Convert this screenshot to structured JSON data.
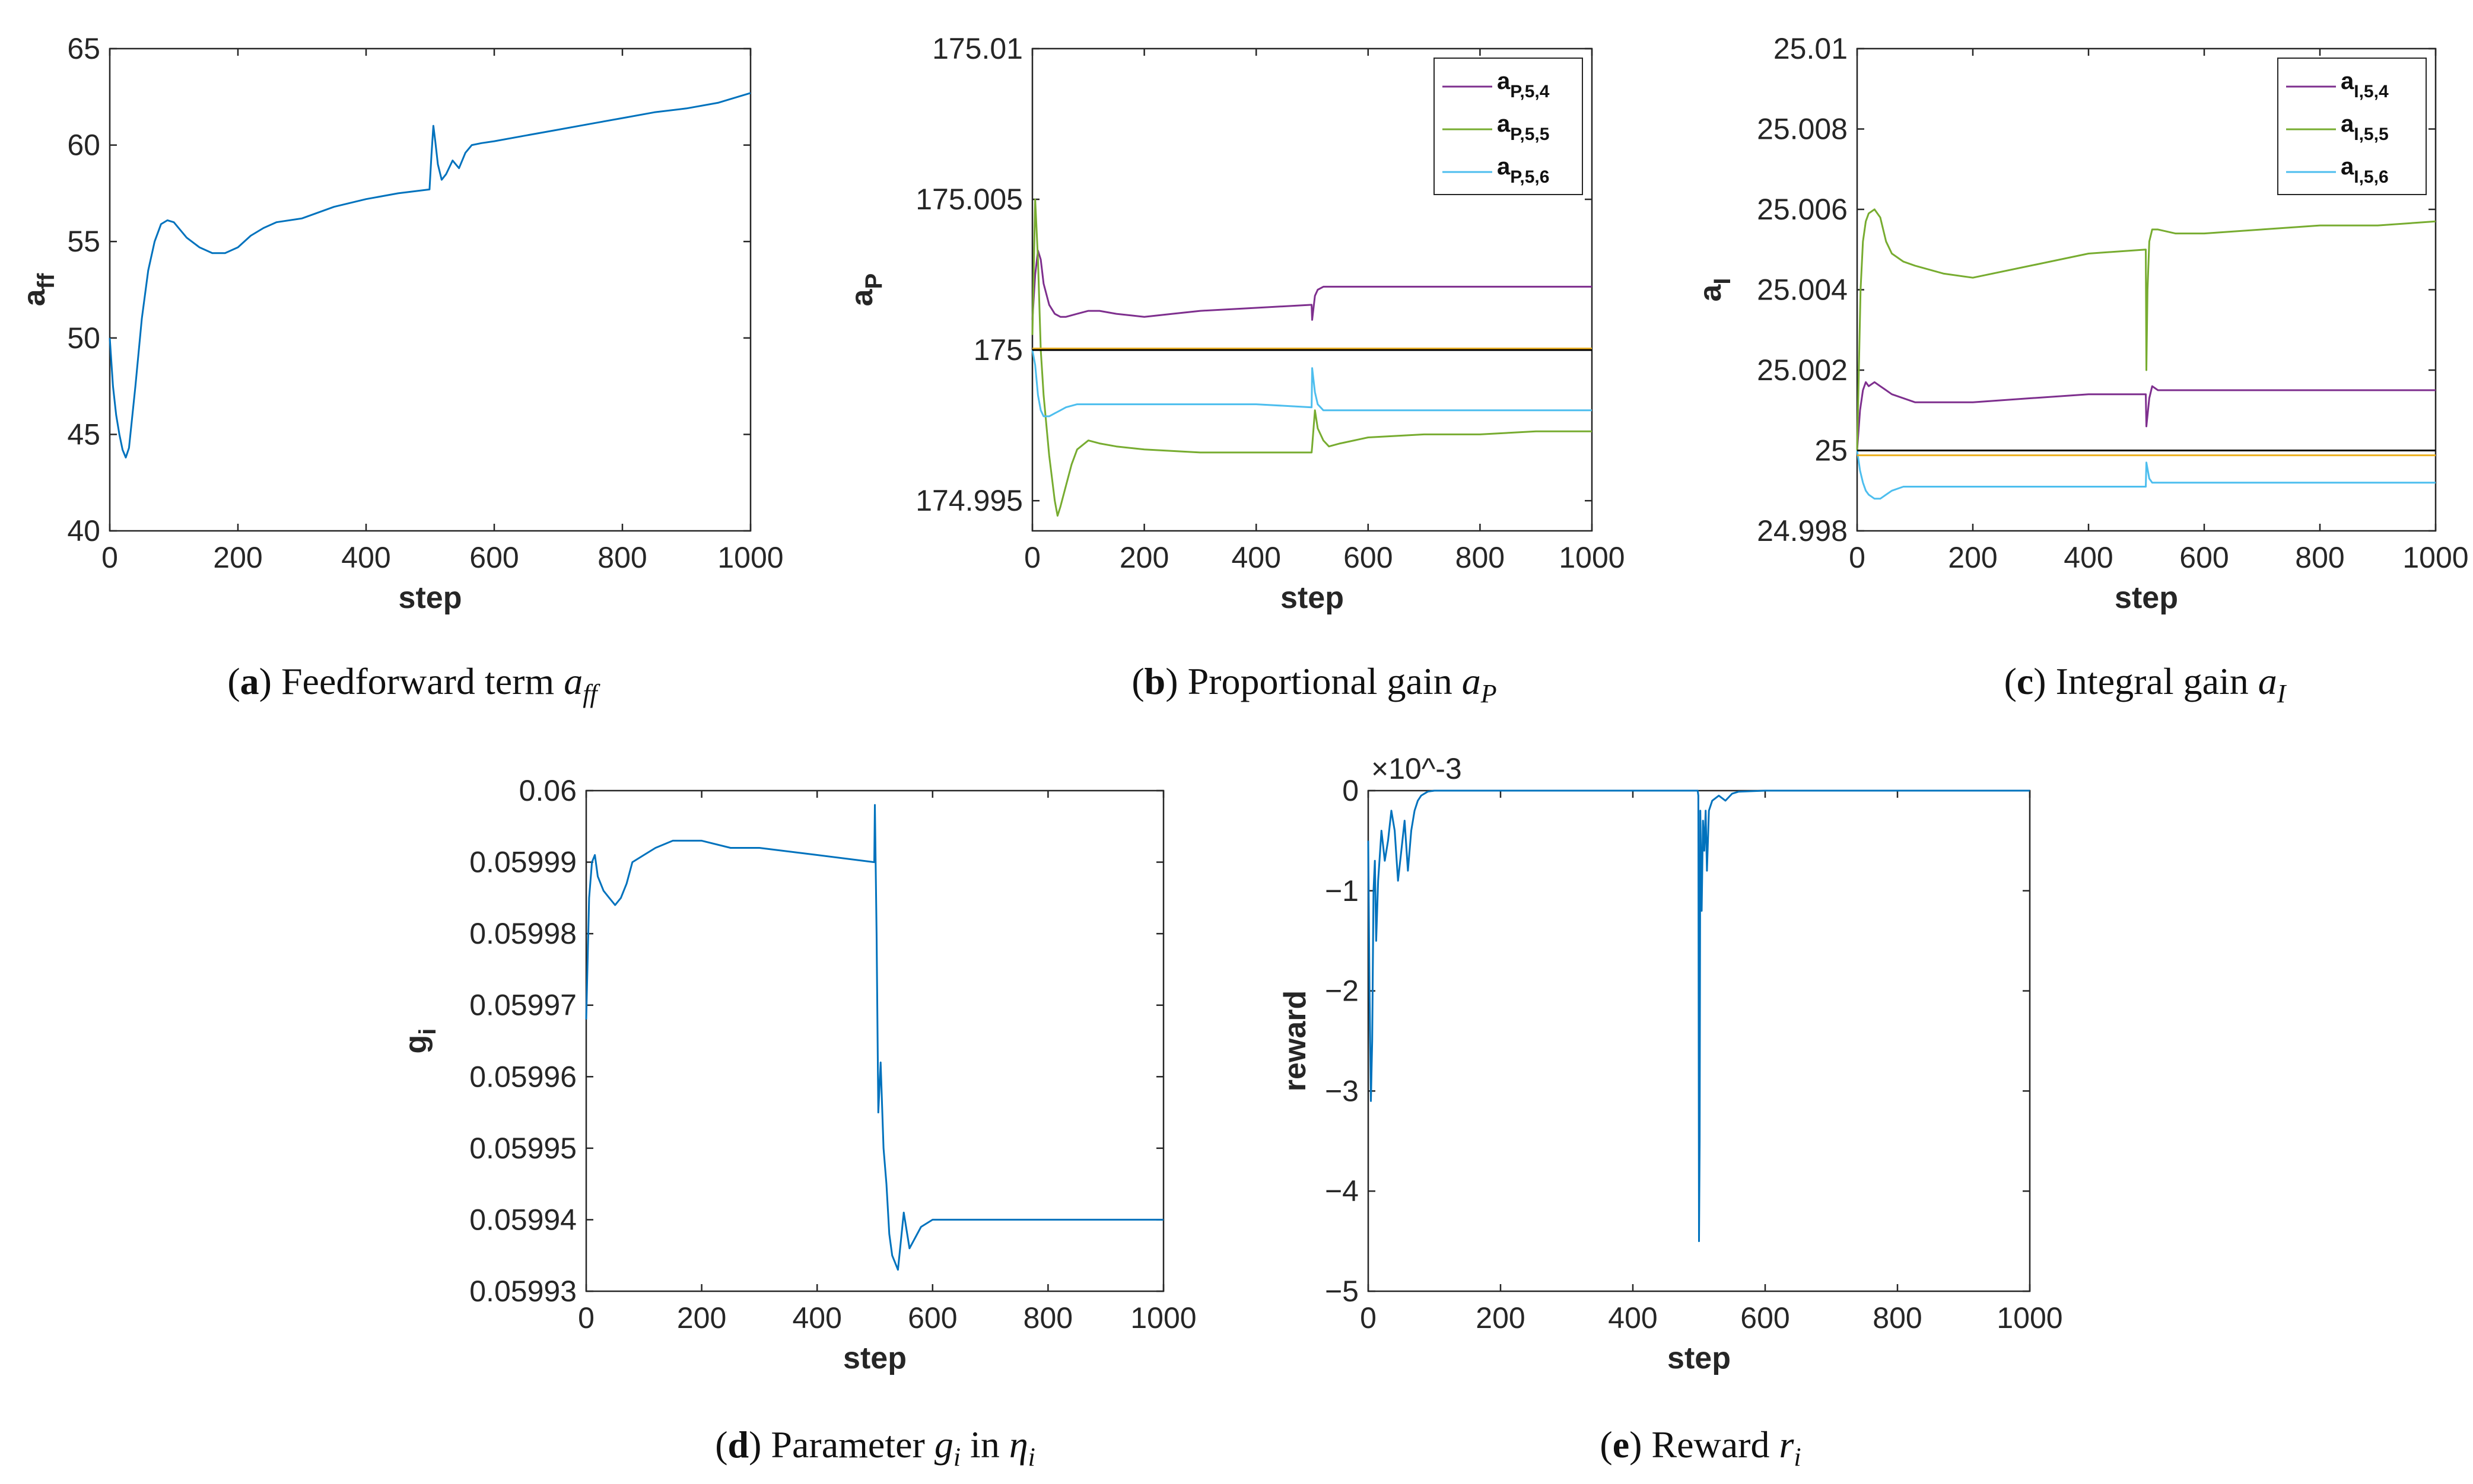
{
  "colors": {
    "blue": "#0072BD",
    "purple": "#7E2F8E",
    "green": "#77AC30",
    "cyan": "#4DBEEE",
    "orange": "#EDB120",
    "black": "#000000"
  },
  "chart_data": [
    {
      "id": "a",
      "type": "line",
      "title": "",
      "xlabel": "step",
      "ylabel": {
        "main": "a",
        "sub": "ff"
      },
      "xlim": [
        0,
        1000
      ],
      "ylim": [
        40,
        65
      ],
      "xticks": [
        0,
        200,
        400,
        600,
        800,
        1000
      ],
      "yticks": [
        40,
        45,
        50,
        55,
        60,
        65
      ],
      "ytick_labels": [
        "40",
        "45",
        "50",
        "55",
        "60",
        "65"
      ],
      "series": [
        {
          "name": "a_ff",
          "color": "blue",
          "x": [
            0,
            5,
            10,
            15,
            20,
            25,
            30,
            40,
            50,
            60,
            70,
            80,
            90,
            100,
            110,
            120,
            140,
            160,
            180,
            200,
            220,
            240,
            260,
            300,
            350,
            400,
            450,
            499,
            502,
            505,
            508,
            512,
            518,
            525,
            535,
            545,
            555,
            565,
            580,
            600,
            650,
            700,
            750,
            800,
            850,
            900,
            950,
            1000
          ],
          "y": [
            50.0,
            47.5,
            46.0,
            45.0,
            44.2,
            43.8,
            44.3,
            47.5,
            51.0,
            53.5,
            55.0,
            55.9,
            56.1,
            56.0,
            55.6,
            55.2,
            54.7,
            54.4,
            54.4,
            54.7,
            55.3,
            55.7,
            56.0,
            56.2,
            56.8,
            57.2,
            57.5,
            57.7,
            59.5,
            61.0,
            60.2,
            59.0,
            58.2,
            58.5,
            59.2,
            58.8,
            59.6,
            60.0,
            60.1,
            60.2,
            60.5,
            60.8,
            61.1,
            61.4,
            61.7,
            61.9,
            62.2,
            62.7
          ]
        }
      ]
    },
    {
      "id": "b",
      "type": "line",
      "title": "",
      "xlabel": "step",
      "ylabel": {
        "main": "a",
        "sub": "P"
      },
      "xlim": [
        0,
        1000
      ],
      "ylim": [
        174.994,
        175.01
      ],
      "xticks": [
        0,
        200,
        400,
        600,
        800,
        1000
      ],
      "yticks": [
        174.995,
        175,
        175.005,
        175.01
      ],
      "ytick_labels": [
        "174.995",
        "175",
        "175.005",
        "175.01"
      ],
      "legend": {
        "location": "top-right",
        "entries": [
          {
            "main": "a",
            "sub": "P,5,4",
            "color": "purple"
          },
          {
            "main": "a",
            "sub": "P,5,5",
            "color": "green"
          },
          {
            "main": "a",
            "sub": "P,5,6",
            "color": "cyan"
          }
        ]
      },
      "series": [
        {
          "name": "a_P,5,4",
          "color": "purple",
          "x": [
            0,
            5,
            10,
            15,
            20,
            30,
            40,
            50,
            60,
            80,
            100,
            120,
            150,
            200,
            250,
            300,
            400,
            499,
            500,
            505,
            510,
            520,
            550,
            600,
            700,
            800,
            900,
            1000
          ],
          "y": [
            175.001,
            175.0025,
            175.0033,
            175.003,
            175.0022,
            175.0015,
            175.0012,
            175.0011,
            175.0011,
            175.0012,
            175.0013,
            175.0013,
            175.0012,
            175.0011,
            175.0012,
            175.0013,
            175.0014,
            175.0015,
            175.001,
            175.0018,
            175.002,
            175.0021,
            175.0021,
            175.0021,
            175.0021,
            175.0021,
            175.0021,
            175.0021
          ]
        },
        {
          "name": "a_P,5,5",
          "color": "green",
          "x": [
            0,
            5,
            10,
            15,
            20,
            30,
            40,
            45,
            50,
            60,
            70,
            80,
            100,
            120,
            150,
            200,
            300,
            400,
            499,
            500,
            505,
            510,
            520,
            530,
            550,
            600,
            700,
            800,
            900,
            1000
          ],
          "y": [
            175.0005,
            175.005,
            175.003,
            175.0,
            174.9985,
            174.9965,
            174.995,
            174.9945,
            174.9948,
            174.9955,
            174.9962,
            174.9967,
            174.997,
            174.9969,
            174.9968,
            174.9967,
            174.9966,
            174.9966,
            174.9966,
            174.9968,
            174.998,
            174.9974,
            174.997,
            174.9968,
            174.9969,
            174.9971,
            174.9972,
            174.9972,
            174.9973,
            174.9973
          ]
        },
        {
          "name": "a_P,5,6",
          "color": "cyan",
          "x": [
            0,
            5,
            10,
            15,
            20,
            30,
            40,
            50,
            60,
            80,
            100,
            150,
            200,
            300,
            400,
            499,
            500,
            505,
            510,
            520,
            530,
            550,
            600,
            700,
            800,
            900,
            1000
          ],
          "y": [
            175.0,
            174.9995,
            174.9985,
            174.998,
            174.9978,
            174.9978,
            174.9979,
            174.998,
            174.9981,
            174.9982,
            174.9982,
            174.9982,
            174.9982,
            174.9982,
            174.9982,
            174.9981,
            174.9994,
            174.9986,
            174.9982,
            174.998,
            174.998,
            174.998,
            174.998,
            174.998,
            174.998,
            174.998,
            174.998
          ]
        },
        {
          "name": "orange reference",
          "color": "orange",
          "x": [
            0,
            1000
          ],
          "y": [
            175.00005,
            175.00005
          ]
        },
        {
          "name": "black reference",
          "color": "black",
          "x": [
            0,
            1000
          ],
          "y": [
            175.0,
            175.0
          ]
        }
      ]
    },
    {
      "id": "c",
      "type": "line",
      "title": "",
      "xlabel": "step",
      "ylabel": {
        "main": "a",
        "sub": "I"
      },
      "xlim": [
        0,
        1000
      ],
      "ylim": [
        24.998,
        25.01
      ],
      "xticks": [
        0,
        200,
        400,
        600,
        800,
        1000
      ],
      "yticks": [
        24.998,
        25,
        25.002,
        25.004,
        25.006,
        25.008,
        25.01
      ],
      "ytick_labels": [
        "24.998",
        "25",
        "25.002",
        "25.004",
        "25.006",
        "25.008",
        "25.01"
      ],
      "legend": {
        "location": "top-right",
        "entries": [
          {
            "main": "a",
            "sub": "I,5,4",
            "color": "purple"
          },
          {
            "main": "a",
            "sub": "I,5,5",
            "color": "green"
          },
          {
            "main": "a",
            "sub": "I,5,6",
            "color": "cyan"
          }
        ]
      },
      "series": [
        {
          "name": "a_I,5,4",
          "color": "purple",
          "x": [
            0,
            5,
            10,
            15,
            20,
            30,
            40,
            50,
            60,
            80,
            100,
            150,
            200,
            300,
            400,
            499,
            500,
            505,
            510,
            520,
            550,
            600,
            700,
            800,
            900,
            1000
          ],
          "y": [
            25.0,
            25.001,
            25.0015,
            25.0017,
            25.0016,
            25.0017,
            25.0016,
            25.0015,
            25.0014,
            25.0013,
            25.0012,
            25.0012,
            25.0012,
            25.0013,
            25.0014,
            25.0014,
            25.0006,
            25.0013,
            25.0016,
            25.0015,
            25.0015,
            25.0015,
            25.0015,
            25.0015,
            25.0015,
            25.0015
          ]
        },
        {
          "name": "a_I,5,5",
          "color": "green",
          "x": [
            0,
            3,
            6,
            10,
            15,
            20,
            30,
            40,
            50,
            60,
            80,
            100,
            150,
            200,
            300,
            400,
            499,
            500,
            502,
            505,
            510,
            520,
            550,
            600,
            700,
            800,
            900,
            1000
          ],
          "y": [
            25.0,
            25.002,
            25.004,
            25.0052,
            25.0057,
            25.0059,
            25.006,
            25.0058,
            25.0052,
            25.0049,
            25.0047,
            25.0046,
            25.0044,
            25.0043,
            25.0046,
            25.0049,
            25.005,
            25.002,
            25.004,
            25.0052,
            25.0055,
            25.0055,
            25.0054,
            25.0054,
            25.0055,
            25.0056,
            25.0056,
            25.0057
          ]
        },
        {
          "name": "a_I,5,6",
          "color": "cyan",
          "x": [
            0,
            5,
            10,
            15,
            20,
            30,
            40,
            50,
            60,
            80,
            100,
            150,
            200,
            300,
            400,
            499,
            500,
            505,
            510,
            520,
            550,
            600,
            700,
            800,
            900,
            1000
          ],
          "y": [
            25.0,
            24.9995,
            24.9992,
            24.999,
            24.9989,
            24.9988,
            24.9988,
            24.9989,
            24.999,
            24.9991,
            24.9991,
            24.9991,
            24.9991,
            24.9991,
            24.9991,
            24.9991,
            24.9997,
            24.9993,
            24.9992,
            24.9992,
            24.9992,
            24.9992,
            24.9992,
            24.9992,
            24.9992,
            24.9992
          ]
        },
        {
          "name": "orange reference",
          "color": "orange",
          "x": [
            0,
            1000
          ],
          "y": [
            24.99988,
            24.99988
          ]
        },
        {
          "name": "black reference",
          "color": "black",
          "x": [
            0,
            1000
          ],
          "y": [
            25.0,
            25.0
          ]
        }
      ]
    },
    {
      "id": "d",
      "type": "line",
      "title": "",
      "xlabel": "step",
      "ylabel": {
        "main": "g",
        "sub": "i"
      },
      "xlim": [
        0,
        1000
      ],
      "ylim": [
        0.05993,
        0.06
      ],
      "xticks": [
        0,
        200,
        400,
        600,
        800,
        1000
      ],
      "yticks": [
        0.05993,
        0.05994,
        0.05995,
        0.05996,
        0.05997,
        0.05998,
        0.05999,
        0.06
      ],
      "ytick_labels": [
        "0.05993",
        "0.05994",
        "0.05995",
        "0.05996",
        "0.05997",
        "0.05998",
        "0.05999",
        "0.06"
      ],
      "series": [
        {
          "name": "g_i",
          "color": "blue",
          "x": [
            0,
            5,
            10,
            15,
            20,
            30,
            40,
            50,
            60,
            70,
            80,
            100,
            120,
            150,
            200,
            250,
            300,
            400,
            499,
            500,
            503,
            506,
            510,
            515,
            520,
            525,
            530,
            535,
            540,
            545,
            550,
            560,
            580,
            600,
            650,
            700,
            800,
            900,
            1000
          ],
          "y": [
            0.059968,
            0.059985,
            0.05999,
            0.059991,
            0.059988,
            0.059986,
            0.059985,
            0.059984,
            0.059985,
            0.059987,
            0.05999,
            0.059991,
            0.059992,
            0.059993,
            0.059993,
            0.059992,
            0.059992,
            0.059991,
            0.05999,
            0.059998,
            0.05998,
            0.059955,
            0.059962,
            0.05995,
            0.059945,
            0.059938,
            0.059935,
            0.059934,
            0.059933,
            0.059937,
            0.059941,
            0.059936,
            0.059939,
            0.05994,
            0.05994,
            0.05994,
            0.05994,
            0.05994,
            0.05994
          ]
        }
      ]
    },
    {
      "id": "e",
      "type": "line",
      "title": "",
      "xlabel": "step",
      "ylabel": "reward",
      "y_exponent": "×10^-3",
      "xlim": [
        0,
        1000
      ],
      "ylim": [
        -5,
        0
      ],
      "xticks": [
        0,
        200,
        400,
        600,
        800,
        1000
      ],
      "yticks": [
        -5,
        -4,
        -3,
        -2,
        -1,
        0
      ],
      "ytick_labels": [
        "−5",
        "−4",
        "−3",
        "−2",
        "−1",
        "0"
      ],
      "series": [
        {
          "name": "reward",
          "color": "blue",
          "x": [
            0,
            2,
            4,
            6,
            8,
            10,
            12,
            15,
            18,
            20,
            25,
            30,
            35,
            40,
            45,
            50,
            55,
            60,
            65,
            70,
            75,
            80,
            90,
            100,
            150,
            200,
            300,
            400,
            498,
            499,
            500,
            501,
            502,
            504,
            506,
            508,
            510,
            512,
            515,
            520,
            530,
            540,
            550,
            560,
            600,
            700,
            800,
            900,
            1000
          ],
          "y": [
            -0.5,
            -2.0,
            -3.1,
            -2.5,
            -1.0,
            -0.7,
            -1.5,
            -0.9,
            -0.6,
            -0.4,
            -0.7,
            -0.5,
            -0.2,
            -0.4,
            -0.9,
            -0.6,
            -0.3,
            -0.8,
            -0.4,
            -0.2,
            -0.1,
            -0.05,
            -0.01,
            0.0,
            0.0,
            0.0,
            0.0,
            0.0,
            0.0,
            -0.05,
            -4.5,
            -3.5,
            -0.2,
            -1.2,
            -0.3,
            -0.6,
            -0.2,
            -0.8,
            -0.2,
            -0.1,
            -0.05,
            -0.1,
            -0.03,
            -0.01,
            0.0,
            0.0,
            0.0,
            0.0,
            0.0
          ]
        }
      ]
    }
  ],
  "captions": [
    {
      "letter": "a",
      "text": " Feedforward term ",
      "var": "a",
      "var_sub": "ff"
    },
    {
      "letter": "b",
      "text": " Proportional gain ",
      "var": "a",
      "var_sub": "P"
    },
    {
      "letter": "c",
      "text": " Integral gain ",
      "var": "a",
      "var_sub": "I"
    },
    {
      "letter": "d",
      "text": " Parameter ",
      "var": "g",
      "var_sub": "i",
      "text2": " in ",
      "var2": "η",
      "var2_sub": "i"
    },
    {
      "letter": "e",
      "text": " Reward ",
      "var": "r",
      "var_sub": "i"
    }
  ]
}
